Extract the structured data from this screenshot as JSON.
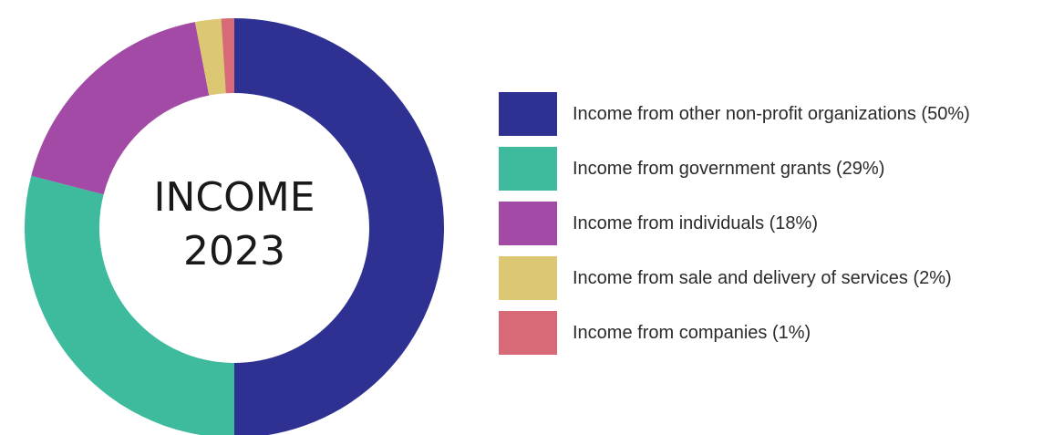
{
  "chart_data": {
    "type": "pie",
    "center_title": [
      "INCOME",
      "2023"
    ],
    "categories": [
      "Income from other non-profit organizations (50%)",
      "Income from government grants (29%)",
      "Income from individuals (18%)",
      "Income from sale and delivery of services (2%)",
      "Income from companies (1%)"
    ],
    "values": [
      50,
      29,
      18,
      2,
      1
    ],
    "colors": [
      "#2e3192",
      "#3dbb9c",
      "#a24aa5",
      "#dcc873",
      "#d86a78"
    ],
    "legend_position": "right"
  }
}
